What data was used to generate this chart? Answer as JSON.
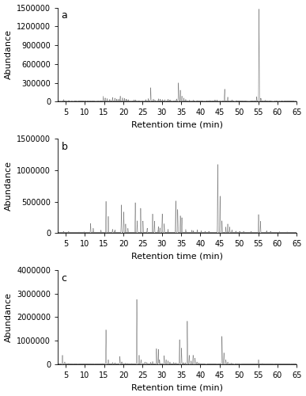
{
  "panel_a": {
    "label": "a",
    "ylim": [
      0,
      1500000
    ],
    "yticks": [
      0,
      300000,
      600000,
      900000,
      1200000,
      1500000
    ],
    "peaks": [
      [
        4.5,
        28000
      ],
      [
        5.8,
        12000
      ],
      [
        8.5,
        8000
      ],
      [
        10.2,
        7000
      ],
      [
        14.8,
        85000
      ],
      [
        15.3,
        55000
      ],
      [
        15.8,
        45000
      ],
      [
        16.5,
        30000
      ],
      [
        17.2,
        65000
      ],
      [
        17.8,
        50000
      ],
      [
        18.3,
        40000
      ],
      [
        18.8,
        35000
      ],
      [
        19.2,
        85000
      ],
      [
        19.8,
        55000
      ],
      [
        20.3,
        45000
      ],
      [
        20.8,
        35000
      ],
      [
        21.3,
        25000
      ],
      [
        22.8,
        22000
      ],
      [
        23.2,
        18000
      ],
      [
        25.8,
        28000
      ],
      [
        26.5,
        45000
      ],
      [
        27.1,
        220000
      ],
      [
        27.8,
        35000
      ],
      [
        28.2,
        22000
      ],
      [
        29.1,
        40000
      ],
      [
        29.6,
        30000
      ],
      [
        30.2,
        25000
      ],
      [
        30.8,
        28000
      ],
      [
        31.6,
        32000
      ],
      [
        32.1,
        22000
      ],
      [
        33.8,
        38000
      ],
      [
        34.3,
        290000
      ],
      [
        34.8,
        180000
      ],
      [
        35.2,
        85000
      ],
      [
        35.7,
        50000
      ],
      [
        36.2,
        32000
      ],
      [
        37.2,
        18000
      ],
      [
        38.2,
        15000
      ],
      [
        39.2,
        12000
      ],
      [
        40.2,
        10000
      ],
      [
        41.5,
        8000
      ],
      [
        42.5,
        12000
      ],
      [
        43.8,
        15000
      ],
      [
        44.3,
        18000
      ],
      [
        46.3,
        195000
      ],
      [
        47.1,
        70000
      ],
      [
        48.2,
        22000
      ],
      [
        49.3,
        12000
      ],
      [
        50.5,
        8000
      ],
      [
        51.5,
        10000
      ],
      [
        54.6,
        75000
      ],
      [
        55.2,
        1470000
      ],
      [
        55.7,
        50000
      ],
      [
        56.8,
        15000
      ],
      [
        58.0,
        8000
      ],
      [
        61.0,
        6000
      ],
      [
        63.0,
        4000
      ]
    ]
  },
  "panel_b": {
    "label": "b",
    "ylim": [
      0,
      1500000
    ],
    "yticks": [
      0,
      500000,
      1000000,
      1500000
    ],
    "peaks": [
      [
        4.5,
        18000
      ],
      [
        5.8,
        12000
      ],
      [
        8.5,
        9000
      ],
      [
        9.8,
        12000
      ],
      [
        11.5,
        145000
      ],
      [
        12.2,
        70000
      ],
      [
        14.2,
        35000
      ],
      [
        15.5,
        500000
      ],
      [
        16.1,
        260000
      ],
      [
        17.2,
        55000
      ],
      [
        17.8,
        38000
      ],
      [
        19.5,
        440000
      ],
      [
        20.1,
        330000
      ],
      [
        20.6,
        140000
      ],
      [
        21.2,
        70000
      ],
      [
        23.1,
        480000
      ],
      [
        23.6,
        190000
      ],
      [
        24.5,
        390000
      ],
      [
        25.1,
        185000
      ],
      [
        26.2,
        70000
      ],
      [
        27.6,
        300000
      ],
      [
        28.1,
        185000
      ],
      [
        29.1,
        95000
      ],
      [
        29.5,
        75000
      ],
      [
        30.1,
        300000
      ],
      [
        30.6,
        140000
      ],
      [
        31.6,
        55000
      ],
      [
        33.6,
        510000
      ],
      [
        34.1,
        370000
      ],
      [
        34.8,
        270000
      ],
      [
        35.2,
        240000
      ],
      [
        36.2,
        55000
      ],
      [
        37.8,
        35000
      ],
      [
        38.2,
        25000
      ],
      [
        39.2,
        42000
      ],
      [
        40.2,
        25000
      ],
      [
        41.2,
        18000
      ],
      [
        42.2,
        20000
      ],
      [
        44.5,
        1090000
      ],
      [
        45.1,
        580000
      ],
      [
        45.6,
        190000
      ],
      [
        46.6,
        90000
      ],
      [
        47.1,
        140000
      ],
      [
        47.6,
        90000
      ],
      [
        48.2,
        45000
      ],
      [
        49.2,
        25000
      ],
      [
        50.2,
        20000
      ],
      [
        51.2,
        15000
      ],
      [
        53.2,
        15000
      ],
      [
        55.1,
        290000
      ],
      [
        55.6,
        185000
      ],
      [
        57.2,
        25000
      ],
      [
        58.2,
        15000
      ],
      [
        60.5,
        12000
      ],
      [
        62.5,
        8000
      ]
    ]
  },
  "panel_c": {
    "label": "c",
    "ylim": [
      0,
      4000000
    ],
    "yticks": [
      0,
      1000000,
      2000000,
      3000000,
      4000000
    ],
    "peaks": [
      [
        4.2,
        380000
      ],
      [
        4.8,
        95000
      ],
      [
        5.8,
        25000
      ],
      [
        6.5,
        15000
      ],
      [
        8.5,
        12000
      ],
      [
        9.5,
        15000
      ],
      [
        10.5,
        12000
      ],
      [
        11.5,
        15000
      ],
      [
        12.5,
        18000
      ],
      [
        13.5,
        15000
      ],
      [
        14.5,
        22000
      ],
      [
        15.5,
        1460000
      ],
      [
        16.1,
        185000
      ],
      [
        17.2,
        70000
      ],
      [
        17.8,
        50000
      ],
      [
        19.1,
        330000
      ],
      [
        19.6,
        90000
      ],
      [
        20.6,
        42000
      ],
      [
        21.1,
        32000
      ],
      [
        22.2,
        25000
      ],
      [
        23.5,
        2750000
      ],
      [
        24.1,
        380000
      ],
      [
        24.6,
        185000
      ],
      [
        25.6,
        90000
      ],
      [
        26.1,
        70000
      ],
      [
        27.1,
        70000
      ],
      [
        27.6,
        110000
      ],
      [
        28.6,
        660000
      ],
      [
        29.1,
        630000
      ],
      [
        29.4,
        185000
      ],
      [
        30.6,
        360000
      ],
      [
        31.1,
        185000
      ],
      [
        31.6,
        140000
      ],
      [
        32.1,
        90000
      ],
      [
        33.1,
        70000
      ],
      [
        33.6,
        55000
      ],
      [
        34.6,
        1040000
      ],
      [
        35.1,
        680000
      ],
      [
        35.6,
        70000
      ],
      [
        36.1,
        55000
      ],
      [
        36.6,
        1830000
      ],
      [
        37.1,
        380000
      ],
      [
        37.6,
        140000
      ],
      [
        38.1,
        380000
      ],
      [
        38.6,
        260000
      ],
      [
        39.1,
        90000
      ],
      [
        39.6,
        42000
      ],
      [
        40.1,
        25000
      ],
      [
        41.1,
        15000
      ],
      [
        43.1,
        15000
      ],
      [
        45.6,
        1180000
      ],
      [
        46.1,
        480000
      ],
      [
        46.6,
        185000
      ],
      [
        47.1,
        90000
      ],
      [
        48.1,
        42000
      ],
      [
        49.1,
        25000
      ],
      [
        50.1,
        15000
      ],
      [
        55.1,
        185000
      ],
      [
        56.1,
        25000
      ],
      [
        60.1,
        12000
      ],
      [
        62.1,
        8000
      ]
    ]
  },
  "xlim": [
    3,
    65
  ],
  "xticks": [
    5,
    10,
    15,
    20,
    25,
    30,
    35,
    40,
    45,
    50,
    55,
    60,
    65
  ],
  "xlabel": "Retention time (min)",
  "ylabel": "Abundance",
  "line_color": "#7f7f7f",
  "background_color": "#ffffff",
  "label_fontsize": 8,
  "tick_fontsize": 7,
  "peak_sigma": 0.05,
  "baseline_amplitude": 3000,
  "n_points": 15000
}
